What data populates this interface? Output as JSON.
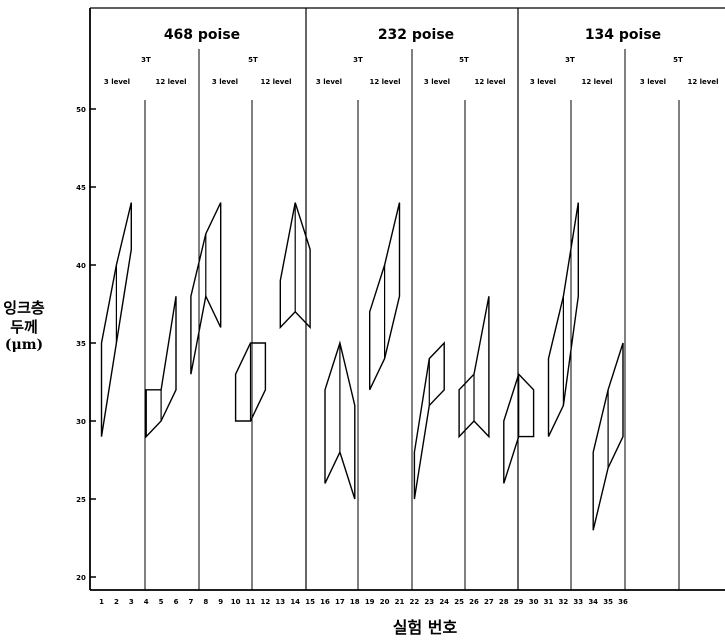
{
  "chart_data": {
    "type": "range-polygon",
    "ylabel": [
      "잉크층",
      "두께",
      "(μm)"
    ],
    "xlabel": "실험 번호",
    "yticks": [
      20,
      25,
      30,
      35,
      40,
      45,
      50
    ],
    "ylim": [
      19,
      52
    ],
    "viscosities": [
      "468 poise",
      "232 poise",
      "134 poise"
    ],
    "treatments": [
      "3T",
      "5T"
    ],
    "levels": [
      "3 level",
      "12 level"
    ],
    "x": [
      1,
      2,
      3,
      4,
      5,
      6,
      7,
      8,
      9,
      10,
      11,
      12,
      13,
      14,
      15,
      16,
      17,
      18,
      19,
      20,
      21,
      22,
      23,
      24,
      25,
      26,
      27,
      28,
      29,
      30,
      31,
      32,
      33,
      34,
      35,
      36
    ],
    "x_labels": [
      "1",
      "2",
      "3",
      "4",
      "5",
      "6",
      "7",
      "8",
      "9",
      "10",
      "11",
      "12",
      "13",
      "14",
      "15",
      "16",
      "17",
      "18",
      "19",
      "20",
      "21",
      "22",
      "23",
      "24",
      "25",
      "26",
      "27",
      "28",
      "29",
      "30",
      "31",
      "32",
      "33",
      "34",
      "35",
      "36"
    ],
    "groups": [
      {
        "x": [
          1,
          2,
          3
        ],
        "max": [
          35,
          40,
          44
        ],
        "min": [
          29,
          35,
          41
        ]
      },
      {
        "x": [
          4,
          5,
          6
        ],
        "max": [
          32,
          32,
          38
        ],
        "min": [
          29,
          30,
          32
        ]
      },
      {
        "x": [
          7,
          8,
          9
        ],
        "max": [
          38,
          42,
          44
        ],
        "min": [
          33,
          38,
          36
        ]
      },
      {
        "x": [
          10,
          11,
          12
        ],
        "max": [
          33,
          35,
          35
        ],
        "min": [
          30,
          30,
          32
        ]
      },
      {
        "x": [
          13,
          14,
          15
        ],
        "max": [
          39,
          44,
          41
        ],
        "min": [
          36,
          37,
          36
        ]
      },
      {
        "x": [
          16,
          17,
          18
        ],
        "max": [
          32,
          35,
          31
        ],
        "min": [
          26,
          28,
          25
        ]
      },
      {
        "x": [
          19,
          20,
          21
        ],
        "max": [
          37,
          40,
          44
        ],
        "min": [
          32,
          34,
          38
        ]
      },
      {
        "x": [
          22,
          23,
          24
        ],
        "max": [
          28,
          34,
          35
        ],
        "min": [
          25,
          31,
          32
        ]
      },
      {
        "x": [
          25,
          26,
          27
        ],
        "max": [
          32,
          33,
          38
        ],
        "min": [
          29,
          30,
          29
        ]
      },
      {
        "x": [
          28,
          29,
          30
        ],
        "max": [
          30,
          33,
          32
        ],
        "min": [
          26,
          29,
          29
        ]
      },
      {
        "x": [
          31,
          32,
          33
        ],
        "max": [
          34,
          38,
          44
        ],
        "min": [
          29,
          31,
          38
        ]
      },
      {
        "x": [
          34,
          35,
          36
        ],
        "max": [
          28,
          32,
          35
        ],
        "min": [
          23,
          27,
          29
        ]
      }
    ]
  }
}
